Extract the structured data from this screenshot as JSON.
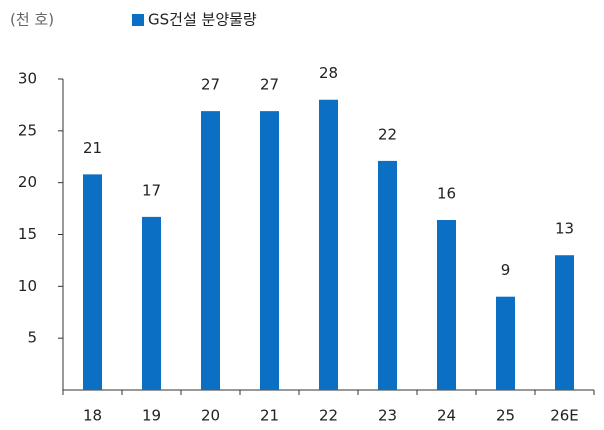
{
  "chart_data": {
    "type": "bar",
    "unit_label": "(천 호)",
    "series": [
      {
        "name": "GS건설 분양물량",
        "color": "#0b6fc4",
        "values": [
          20.8,
          16.7,
          26.9,
          26.9,
          28.0,
          22.1,
          16.4,
          9.0,
          13.0
        ],
        "value_labels": [
          "21",
          "17",
          "27",
          "27",
          "28",
          "22",
          "16",
          "9",
          "13"
        ]
      }
    ],
    "categories": [
      "18",
      "19",
      "20",
      "21",
      "22",
      "23",
      "24",
      "25",
      "26E"
    ],
    "ylim": [
      0,
      30
    ],
    "yticks": [
      5,
      10,
      15,
      20,
      25,
      30
    ],
    "grid": false
  }
}
